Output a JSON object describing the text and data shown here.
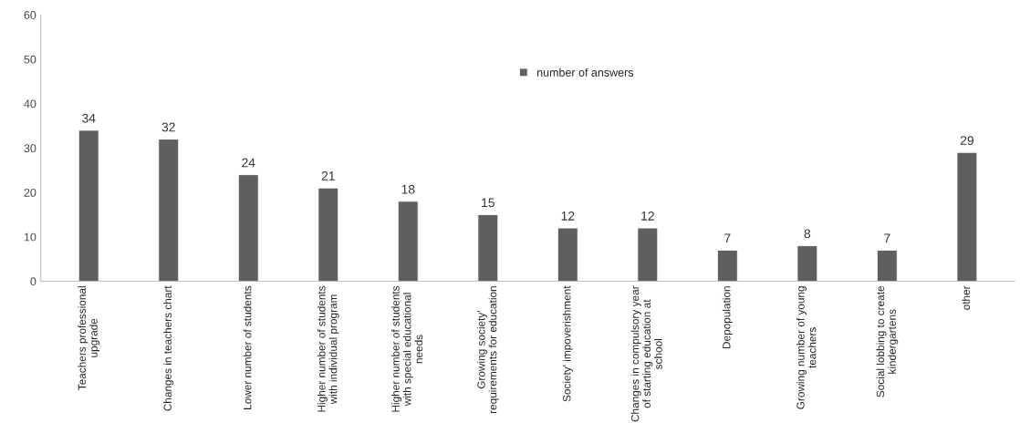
{
  "chart_data": {
    "type": "bar",
    "categories": [
      "Teachers professional\nupgrade",
      "Changes in teachers chart",
      "Lower number of students",
      "Higher number of students\nwith individual program",
      "Higher number of students\nwith special educational\nneeds",
      "Growing society'\nrequirements for education",
      "Society' impoverishment",
      "Changes in compulsory year\nof starting education at\nschool",
      "Depopulation",
      "Growing number of young\nteachers",
      "Social lobbing to create\nkindergartens",
      "other"
    ],
    "series": [
      {
        "name": "number of answers",
        "color": "#5f5f5f",
        "values": [
          34,
          32,
          24,
          21,
          18,
          15,
          12,
          12,
          7,
          8,
          7,
          29
        ]
      }
    ],
    "ylim": [
      0,
      60
    ],
    "yticks": [
      0,
      10,
      20,
      30,
      40,
      50,
      60
    ],
    "data_labels": true,
    "grid": false,
    "legend": "top"
  }
}
